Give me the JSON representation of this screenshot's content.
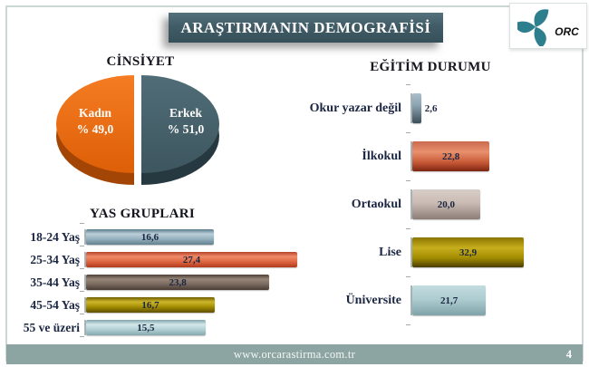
{
  "header": {
    "title": "ARAŞTIRMANIN DEMOGRAFİSİ",
    "logo_text": "ORC"
  },
  "footer": {
    "url": "www.orcarastirma.com.tr",
    "page_number": "4"
  },
  "colors": {
    "banner": "#41606B",
    "footer_bar": "#8CA5A2",
    "frame_border": "#CBD8D6",
    "value_text": "#1B2642",
    "pie_kadin": "#EC6D12",
    "pie_erkek": "#47626C"
  },
  "chart_data": [
    {
      "type": "pie",
      "title": "CİNSİYET",
      "slices": [
        {
          "label": "Kadın",
          "pct_text": "% 49,0",
          "value": 49.0,
          "color": "#EC6D12"
        },
        {
          "label": "Erkek",
          "pct_text": "% 51,0",
          "value": 51.0,
          "color": "#47626C"
        }
      ],
      "style": "3d-pie, split halves, labels inside in white"
    },
    {
      "type": "bar",
      "orientation": "horizontal",
      "title": "YAS GRUPLARI",
      "categories": [
        "18-24 Yaş",
        "25-34 Yaş",
        "35-44 Yaş",
        "45-54 Yaş",
        "55 ve üzeri"
      ],
      "values": [
        16.6,
        27.4,
        23.8,
        16.7,
        15.5
      ],
      "value_labels": [
        "16,6",
        "27,4",
        "23,8",
        "16,7",
        "15,5"
      ],
      "colors": [
        "#8FAEC0",
        "#DD6040",
        "#75635A",
        "#AB9204",
        "#AFCFD4"
      ],
      "xlim": [
        0,
        28
      ],
      "grid": false,
      "value_label_position": "inside"
    },
    {
      "type": "bar",
      "orientation": "horizontal",
      "title": "EĞİTİM DURUMU",
      "categories": [
        "Okur yazar değil",
        "İlkokul",
        "Ortaokul",
        "Lise",
        "Üniversite"
      ],
      "values": [
        2.6,
        22.8,
        20.0,
        32.9,
        21.7
      ],
      "value_labels": [
        "2,6",
        "22,8",
        "20,0",
        "32,9",
        "21,7"
      ],
      "colors": [
        "#7E99A8",
        "#D4694A",
        "#C3B3AD",
        "#A38B00",
        "#A6C6CA"
      ],
      "xlim": [
        0,
        35
      ],
      "grid": false,
      "value_label_position": "inside (first bar outside)"
    }
  ]
}
